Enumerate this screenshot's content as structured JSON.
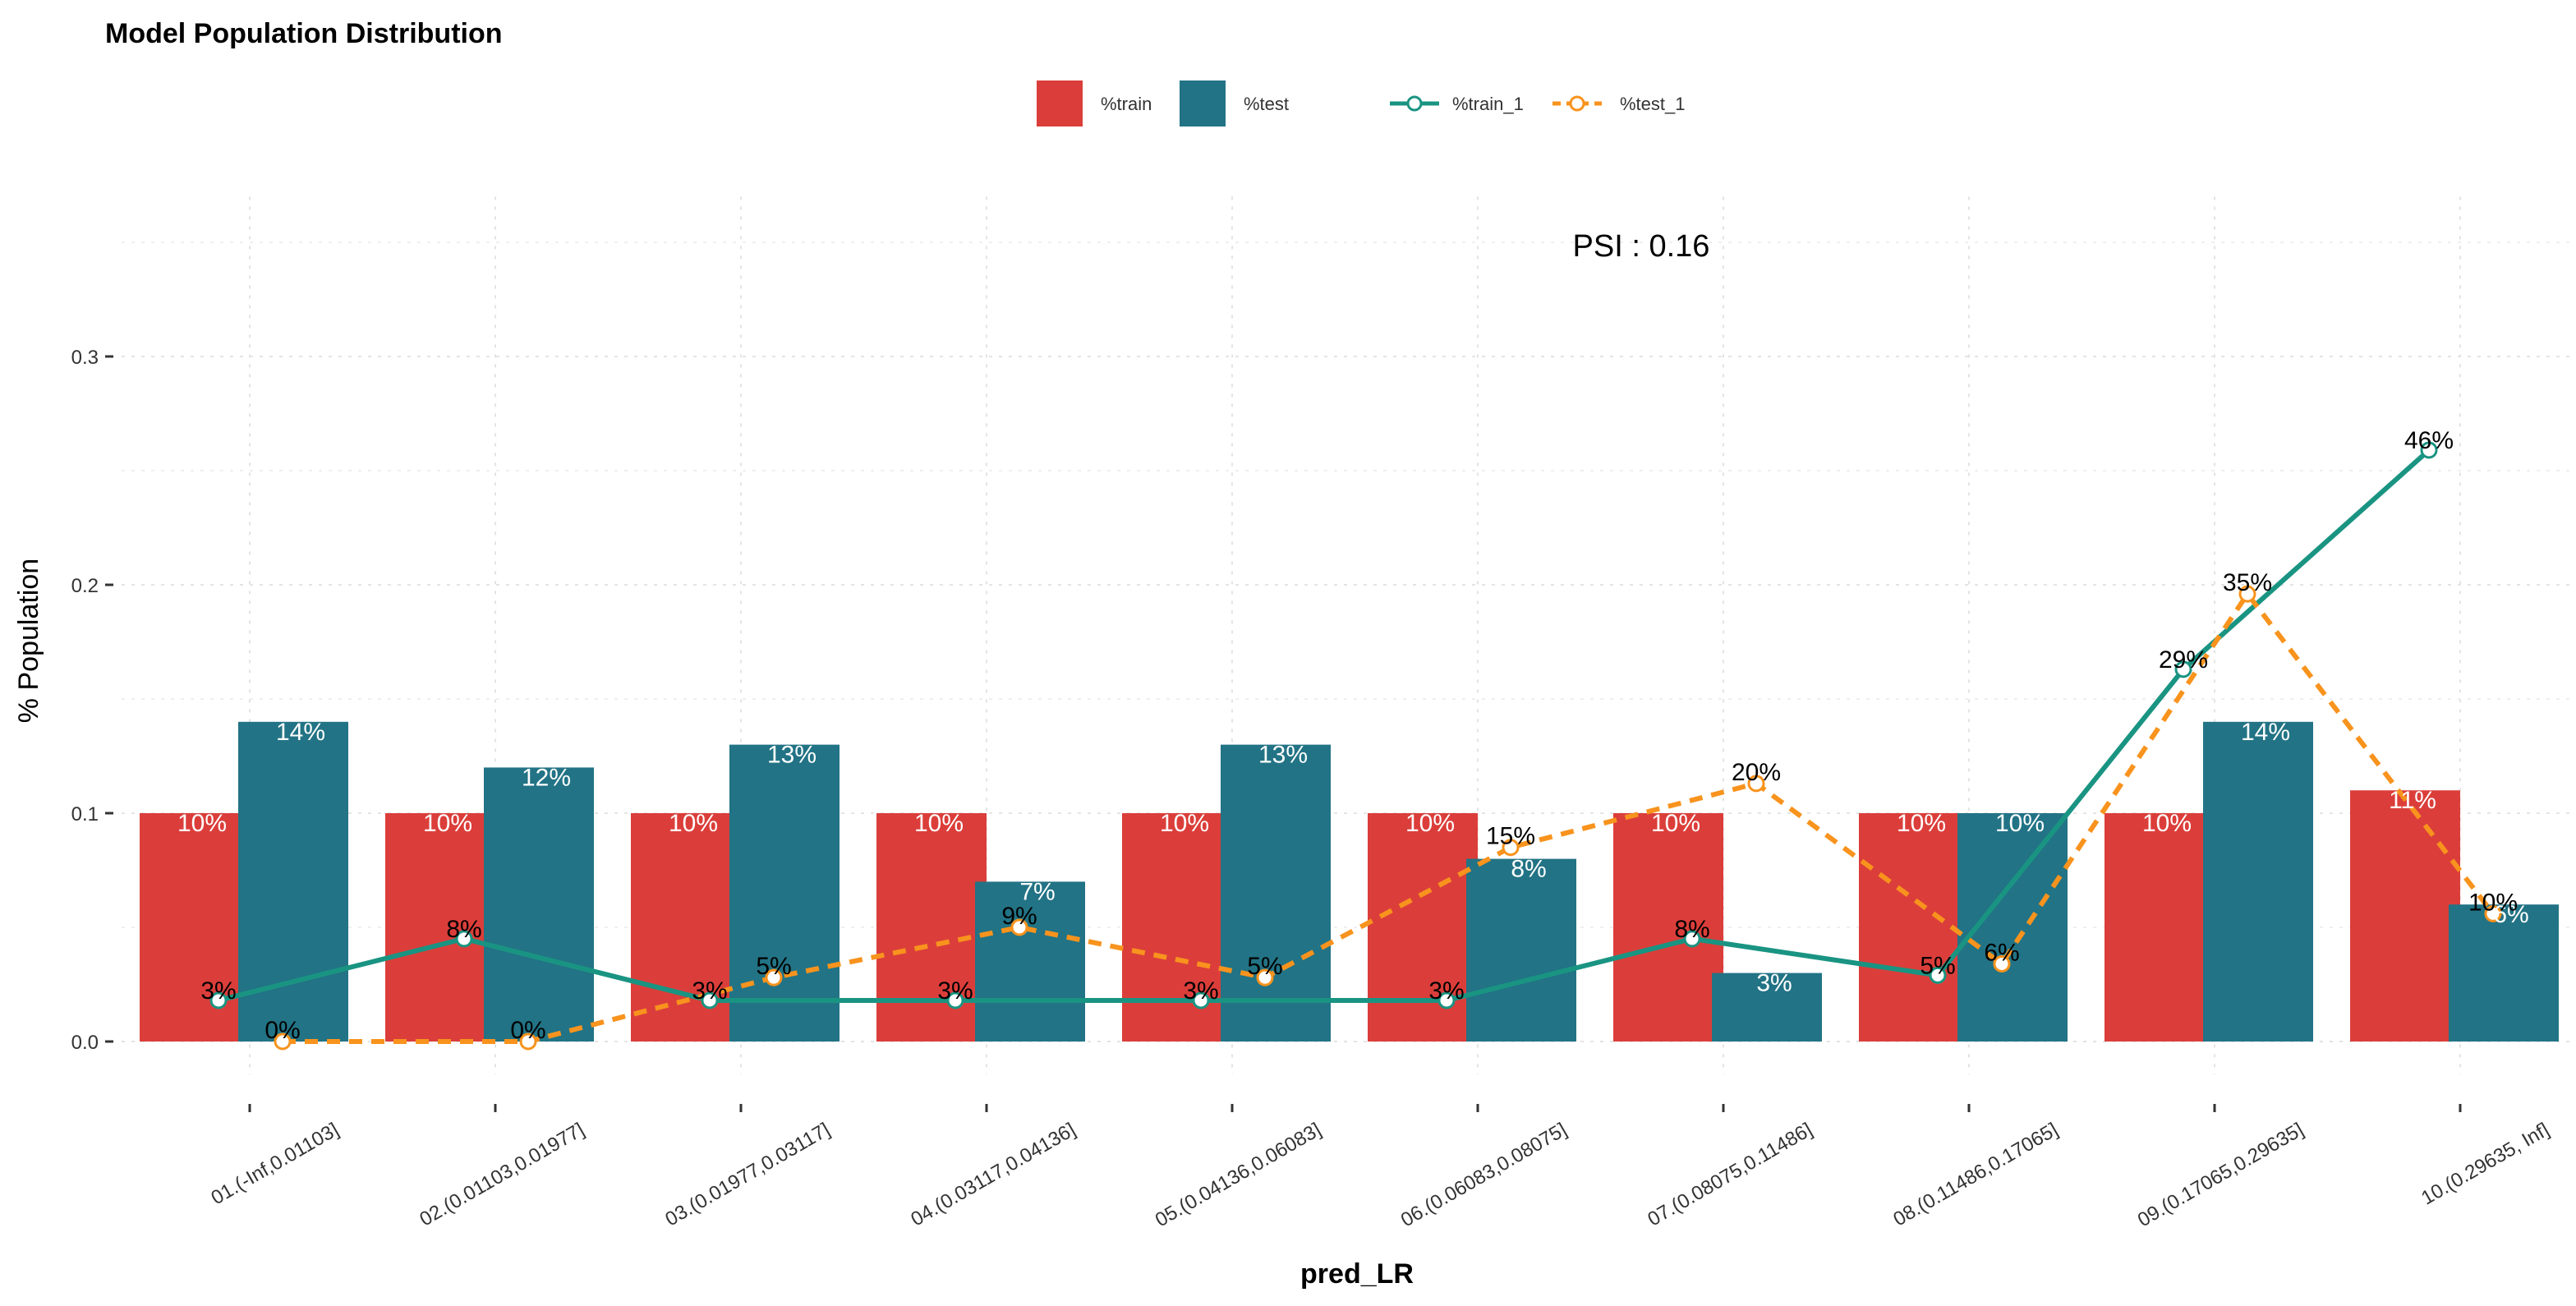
{
  "colors": {
    "train_bar": "#db3e3a",
    "test_bar": "#227385",
    "train_line": "#1a9482",
    "test_line": "#f8931d"
  },
  "chart_data": {
    "type": "bar",
    "title": "Model Population Distribution",
    "xlabel": "pred_LR",
    "ylabel": "% Population",
    "annotation": "PSI : 0.16",
    "ylim": [
      0,
      0.37
    ],
    "yticks": [
      "0.0",
      "0.1",
      "0.2",
      "0.3"
    ],
    "ytick_values": [
      0,
      0.1,
      0.2,
      0.3
    ],
    "grid": true,
    "legend_position": "top",
    "categories": [
      "01.(-Inf,0.01103]",
      "02.(0.01103,0.01977]",
      "03.(0.01977,0.03117]",
      "04.(0.03117,0.04136]",
      "05.(0.04136,0.06083]",
      "06.(0.06083,0.08075]",
      "07.(0.08075,0.11486]",
      "08.(0.11486,0.17065]",
      "09.(0.17065,0.29635]",
      "10.(0.29635, Inf]"
    ],
    "bar_series": [
      {
        "name": "%train",
        "values": [
          0.1,
          0.1,
          0.1,
          0.1,
          0.1,
          0.1,
          0.1,
          0.1,
          0.1,
          0.11
        ],
        "labels": [
          "10%",
          "10%",
          "10%",
          "10%",
          "10%",
          "10%",
          "10%",
          "10%",
          "10%",
          "11%"
        ]
      },
      {
        "name": "%test",
        "values": [
          0.14,
          0.12,
          0.13,
          0.07,
          0.13,
          0.08,
          0.03,
          0.1,
          0.14,
          0.06
        ],
        "labels": [
          "14%",
          "12%",
          "13%",
          "7%",
          "13%",
          "8%",
          "3%",
          "10%",
          "14%",
          "6%"
        ]
      }
    ],
    "line_series": [
      {
        "name": "%train_1",
        "values": [
          0.018,
          0.045,
          0.018,
          0.018,
          0.018,
          0.018,
          0.045,
          0.029,
          0.163,
          0.259
        ],
        "labels": [
          "3%",
          "8%",
          "3%",
          "3%",
          "3%",
          "3%",
          "8%",
          "5%",
          "29%",
          "46%"
        ]
      },
      {
        "name": "%test_1",
        "values": [
          0.0,
          0.0,
          0.028,
          0.05,
          0.028,
          0.085,
          0.113,
          0.034,
          0.196,
          0.056
        ],
        "labels": [
          "0%",
          "0%",
          "5%",
          "9%",
          "5%",
          "15%",
          "20%",
          "6%",
          "35%",
          "10%"
        ]
      }
    ]
  }
}
